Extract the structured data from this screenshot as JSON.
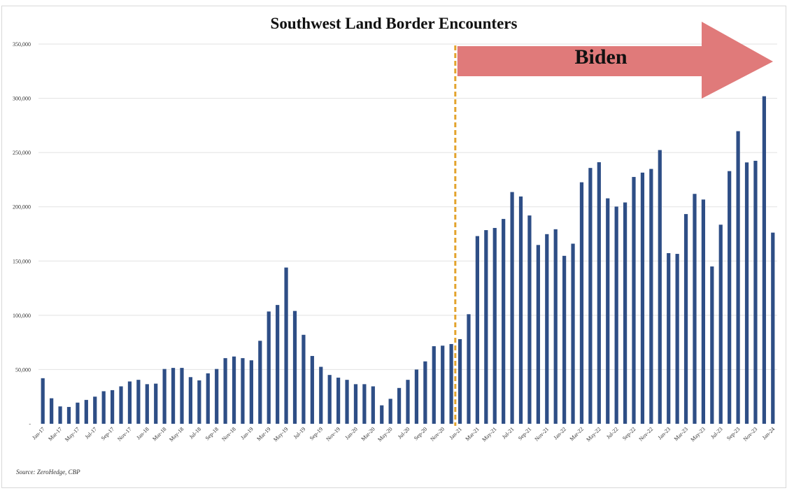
{
  "colors": {
    "bar": "#2e4e86",
    "grid": "#e2e2e2",
    "divider": "#e3a32c",
    "arrow": "#e07a7a",
    "arrow_text": "#111111",
    "text": "#333333"
  },
  "chart_data": {
    "type": "bar",
    "title": "Southwest Land Border Encounters",
    "xlabel": "",
    "ylabel": "",
    "ylim": [
      0,
      350000
    ],
    "yticks": [
      0,
      50000,
      100000,
      150000,
      200000,
      250000,
      300000,
      350000
    ],
    "ytick_labels": [
      "-",
      "50,000",
      "100,000",
      "150,000",
      "200,000",
      "250,000",
      "300,000",
      "350,000"
    ],
    "categories": [
      "Jan-17",
      "Feb-17",
      "Mar-17",
      "Apr-17",
      "May-17",
      "Jun-17",
      "Jul-17",
      "Aug-17",
      "Sep-17",
      "Oct-17",
      "Nov-17",
      "Dec-17",
      "Jan-18",
      "Feb-18",
      "Mar-18",
      "Apr-18",
      "May-18",
      "Jun-18",
      "Jul-18",
      "Aug-18",
      "Sep-18",
      "Oct-18",
      "Nov-18",
      "Dec-18",
      "Jan-19",
      "Feb-19",
      "Mar-19",
      "Apr-19",
      "May-19",
      "Jun-19",
      "Jul-19",
      "Aug-19",
      "Sep-19",
      "Oct-19",
      "Nov-19",
      "Dec-19",
      "Jan-20",
      "Feb-20",
      "Mar-20",
      "Apr-20",
      "May-20",
      "Jun-20",
      "Jul-20",
      "Aug-20",
      "Sep-20",
      "Oct-20",
      "Nov-20",
      "Dec-20",
      "Jan-21",
      "Feb-21",
      "Mar-21",
      "Apr-21",
      "May-21",
      "Jun-21",
      "Jul-21",
      "Aug-21",
      "Sep-21",
      "Oct-21",
      "Nov-21",
      "Dec-21",
      "Jan-22",
      "Feb-22",
      "Mar-22",
      "Apr-22",
      "May-22",
      "Jun-22",
      "Jul-22",
      "Aug-22",
      "Sep-22",
      "Oct-22",
      "Nov-22",
      "Dec-22",
      "Jan-23",
      "Feb-23",
      "Mar-23",
      "Apr-23",
      "May-23",
      "Jun-23",
      "Jul-23",
      "Aug-23",
      "Sep-23",
      "Oct-23",
      "Nov-23",
      "Dec-23",
      "Jan-24"
    ],
    "tick_labels": [
      "Jan-17",
      "Mar-17",
      "May-17",
      "Jul-17",
      "Sep-17",
      "Nov-17",
      "Jan-18",
      "Mar-18",
      "May-18",
      "Jul-18",
      "Sep-18",
      "Nov-18",
      "Jan-19",
      "Mar-19",
      "May-19",
      "Jul-19",
      "Sep-19",
      "Nov-19",
      "Jan-20",
      "Mar-20",
      "May-20",
      "Jul-20",
      "Sep-20",
      "Nov-20",
      "Jan-21",
      "Mar-21",
      "May-21",
      "Jul-21",
      "Sep-21",
      "Nov-21",
      "Jan-22",
      "Mar-22",
      "May-22",
      "Jul-22",
      "Sep-22",
      "Nov-22",
      "Jan-23",
      "Mar-23",
      "May-23",
      "Jul-23",
      "Sep-23",
      "Nov-23",
      "Jan-24"
    ],
    "series": [
      {
        "name": "Encounters",
        "values": [
          42000,
          23500,
          16000,
          15500,
          19500,
          22000,
          25000,
          30000,
          31000,
          34500,
          39000,
          40500,
          36500,
          37000,
          50500,
          51500,
          51500,
          43000,
          40000,
          46500,
          50500,
          60500,
          62000,
          60500,
          58500,
          76500,
          103500,
          109500,
          144000,
          104000,
          82000,
          62500,
          52500,
          45000,
          42500,
          40500,
          36500,
          36500,
          34500,
          17000,
          23000,
          33000,
          40500,
          50000,
          57500,
          71500,
          72000,
          73500,
          78000,
          101000,
          173000,
          178500,
          180500,
          188800,
          213600,
          209500,
          192000,
          164800,
          174800,
          179300,
          154800,
          166000,
          222600,
          235800,
          241100,
          207800,
          200200,
          204000,
          227500,
          231500,
          234900,
          252300,
          157300,
          156600,
          193300,
          211900,
          206700,
          145000,
          183500,
          232900,
          269700,
          240900,
          242400,
          301900,
          176200
        ]
      }
    ],
    "annotations": {
      "divider_label": "Jan-21",
      "arrow_text": "Biden"
    },
    "source": "Source: ZeroHedge, CBP"
  }
}
